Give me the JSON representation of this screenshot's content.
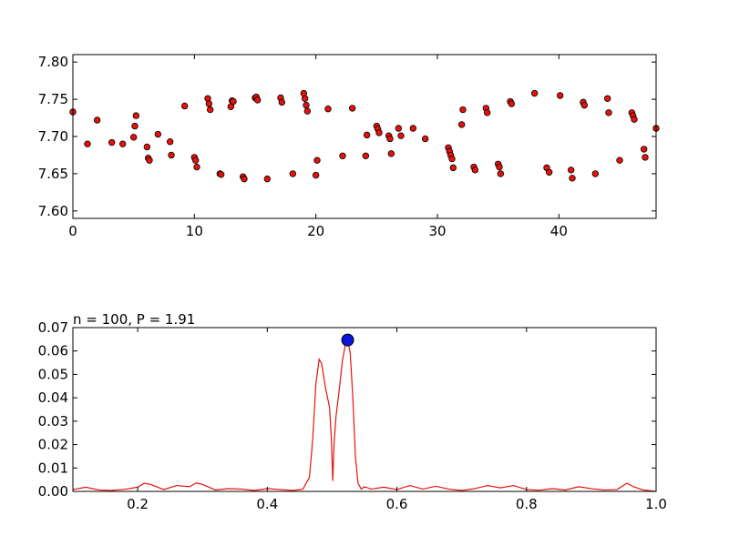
{
  "chart_data": [
    {
      "type": "scatter",
      "title": "",
      "xlabel": "",
      "ylabel": "",
      "xlim": [
        0,
        48
      ],
      "ylim": [
        7.59,
        7.81
      ],
      "xticks": [
        0,
        10,
        20,
        30,
        40
      ],
      "yticks": [
        7.6,
        7.65,
        7.7,
        7.75,
        7.8
      ],
      "xtick_labels": [
        "0",
        "10",
        "20",
        "30",
        "40"
      ],
      "ytick_labels": [
        "7.60",
        "7.65",
        "7.70",
        "7.75",
        "7.80"
      ],
      "grid": false,
      "marker_color": "#e8120c",
      "x": [
        0.0,
        1.2,
        2.0,
        3.2,
        4.1,
        5.0,
        5.1,
        5.2,
        6.1,
        6.2,
        6.3,
        7.0,
        8.0,
        8.1,
        9.2,
        10.0,
        10.1,
        10.2,
        11.1,
        11.2,
        11.3,
        12.1,
        12.2,
        13.0,
        13.1,
        13.2,
        14.0,
        14.1,
        15.0,
        15.1,
        15.2,
        16.0,
        17.1,
        17.2,
        18.1,
        19.0,
        19.1,
        19.2,
        19.3,
        20.0,
        20.1,
        21.0,
        22.2,
        23.0,
        24.1,
        24.2,
        25.0,
        25.1,
        25.2,
        26.0,
        26.1,
        26.2,
        26.8,
        27.0,
        28.0,
        29.0,
        30.9,
        31.0,
        31.1,
        31.2,
        31.3,
        32.0,
        32.1,
        33.0,
        33.1,
        34.0,
        34.1,
        35.0,
        35.1,
        35.2,
        36.0,
        36.1,
        38.0,
        39.0,
        39.2,
        40.1,
        41.0,
        41.1,
        42.0,
        42.1,
        43.0,
        44.0,
        44.1,
        45.0,
        46.0,
        46.1,
        46.2,
        47.0,
        47.1,
        48.0
      ],
      "y": [
        7.733,
        7.69,
        7.722,
        7.692,
        7.69,
        7.699,
        7.714,
        7.728,
        7.686,
        7.671,
        7.668,
        7.703,
        7.693,
        7.675,
        7.741,
        7.672,
        7.668,
        7.659,
        7.751,
        7.744,
        7.736,
        7.65,
        7.649,
        7.74,
        7.748,
        7.747,
        7.646,
        7.643,
        7.752,
        7.753,
        7.749,
        7.643,
        7.752,
        7.746,
        7.65,
        7.758,
        7.751,
        7.742,
        7.734,
        7.648,
        7.668,
        7.737,
        7.674,
        7.738,
        7.674,
        7.702,
        7.714,
        7.71,
        7.705,
        7.701,
        7.697,
        7.677,
        7.711,
        7.701,
        7.711,
        7.697,
        7.685,
        7.68,
        7.675,
        7.67,
        7.658,
        7.716,
        7.736,
        7.659,
        7.655,
        7.738,
        7.732,
        7.663,
        7.659,
        7.65,
        7.747,
        7.744,
        7.758,
        7.658,
        7.652,
        7.755,
        7.655,
        7.644,
        7.746,
        7.742,
        7.65,
        7.751,
        7.732,
        7.668,
        7.732,
        7.728,
        7.723,
        7.683,
        7.672,
        7.711
      ]
    },
    {
      "type": "line",
      "title": "n = 100, P = 1.91",
      "xlabel": "",
      "ylabel": "",
      "xlim": [
        0.1,
        1.0
      ],
      "ylim": [
        0,
        0.07
      ],
      "xticks": [
        0.2,
        0.4,
        0.6,
        0.8,
        1.0
      ],
      "yticks": [
        0.0,
        0.01,
        0.02,
        0.03,
        0.04,
        0.05,
        0.06,
        0.07
      ],
      "xtick_labels": [
        "0.2",
        "0.4",
        "0.6",
        "0.8",
        "1.0"
      ],
      "ytick_labels": [
        "0.00",
        "0.01",
        "0.02",
        "0.03",
        "0.04",
        "0.05",
        "0.06",
        "0.07"
      ],
      "grid": false,
      "line_color": "#e8120c",
      "peak_marker_color": "#0a14e0",
      "peak": {
        "x": 0.524,
        "y": 0.0647
      },
      "x": [
        0.1,
        0.12,
        0.14,
        0.16,
        0.18,
        0.2,
        0.21,
        0.22,
        0.24,
        0.26,
        0.28,
        0.29,
        0.3,
        0.32,
        0.34,
        0.36,
        0.38,
        0.4,
        0.42,
        0.44,
        0.455,
        0.465,
        0.47,
        0.475,
        0.48,
        0.484,
        0.49,
        0.496,
        0.499,
        0.501,
        0.503,
        0.506,
        0.51,
        0.516,
        0.52,
        0.524,
        0.528,
        0.532,
        0.536,
        0.54,
        0.545,
        0.55,
        0.56,
        0.58,
        0.6,
        0.62,
        0.64,
        0.66,
        0.68,
        0.7,
        0.72,
        0.74,
        0.76,
        0.78,
        0.8,
        0.82,
        0.84,
        0.86,
        0.88,
        0.9,
        0.92,
        0.94,
        0.955,
        0.965,
        0.98,
        1.0
      ],
      "y": [
        0.0008,
        0.0018,
        0.0006,
        0.0004,
        0.0009,
        0.0018,
        0.0035,
        0.003,
        0.0008,
        0.0025,
        0.002,
        0.0036,
        0.003,
        0.0006,
        0.0012,
        0.001,
        0.0004,
        0.0012,
        0.0008,
        0.0004,
        0.001,
        0.006,
        0.022,
        0.046,
        0.0565,
        0.0545,
        0.044,
        0.036,
        0.022,
        0.0045,
        0.02,
        0.032,
        0.041,
        0.056,
        0.062,
        0.0647,
        0.059,
        0.04,
        0.015,
        0.0035,
        0.001,
        0.002,
        0.001,
        0.0018,
        0.0008,
        0.0025,
        0.001,
        0.0022,
        0.001,
        0.0004,
        0.0012,
        0.0025,
        0.0015,
        0.0025,
        0.0008,
        0.0005,
        0.0012,
        0.0006,
        0.002,
        0.0012,
        0.0006,
        0.0008,
        0.0035,
        0.002,
        0.0006,
        0.0
      ]
    }
  ]
}
